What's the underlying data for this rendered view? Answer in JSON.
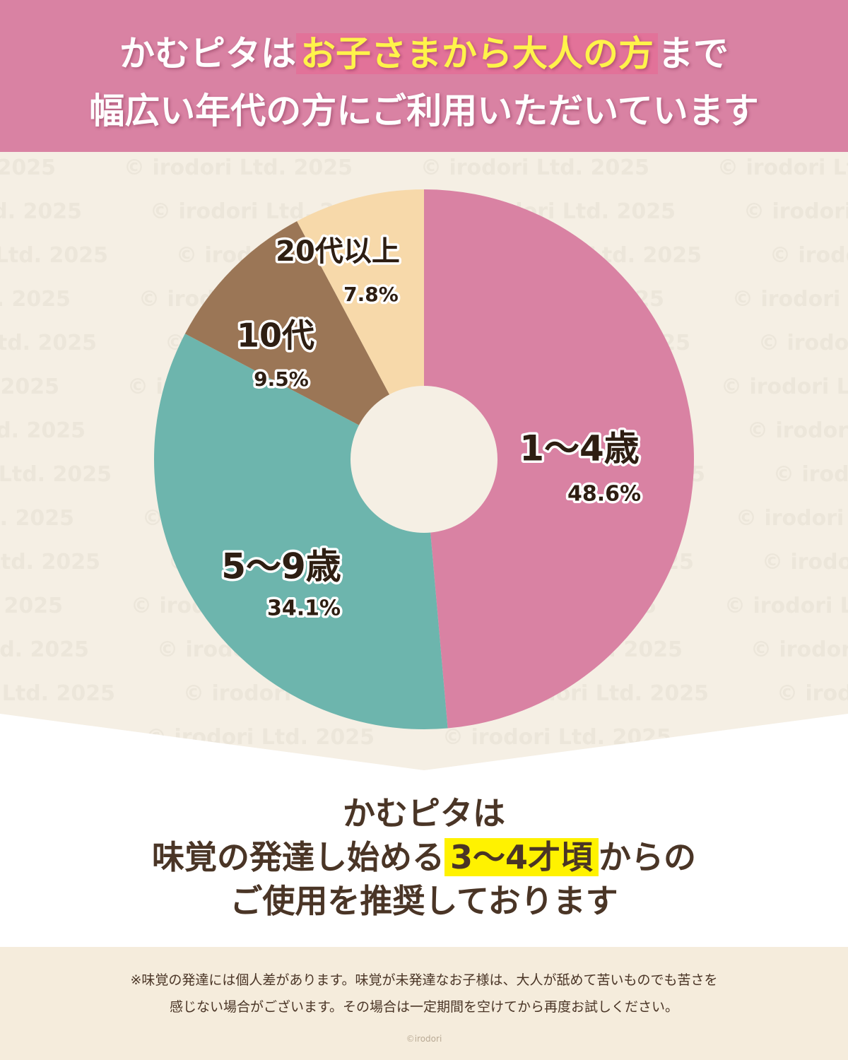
{
  "header": {
    "line1_prefix": "かむピタは",
    "line1_highlight": "お子さまから大人の方",
    "line1_suffix": "まで",
    "line2": "幅広い年代の方にご利用いただいています",
    "bg_color": "#d982a3",
    "highlight_text_color": "#fff34a"
  },
  "watermark": "© irodori Ltd. 2025",
  "chart_data": {
    "type": "pie",
    "donut": true,
    "start": "12 o'clock",
    "direction": "clockwise",
    "slices": [
      {
        "label": "1〜4歳",
        "value": 48.6,
        "value_label": "48.6%",
        "color": "#d982a3"
      },
      {
        "label": "5〜9歳",
        "value": 34.1,
        "value_label": "34.1%",
        "color": "#6db5ad"
      },
      {
        "label": "10代",
        "value": 9.5,
        "value_label": "9.5%",
        "color": "#9b7656"
      },
      {
        "label": "20代以上",
        "value": 7.8,
        "value_label": "7.8%",
        "color": "#f7d9aa"
      }
    ],
    "legend": "none"
  },
  "conclusion": {
    "line1": "かむピタは",
    "line2_prefix": "味覚の発達し始める",
    "line2_highlight": "3〜4才頃",
    "line2_suffix": "からの",
    "line3": "ご使用を推奨しております"
  },
  "note": {
    "line1": "※味覚の発達には個人差があります。味覚が未発達なお子様は、大人が舐めて苦いものでも苦さを",
    "line2": "感じない場合がございます。その場合は一定期間を空けてから再度お試しください。"
  },
  "brand": "©irodori"
}
